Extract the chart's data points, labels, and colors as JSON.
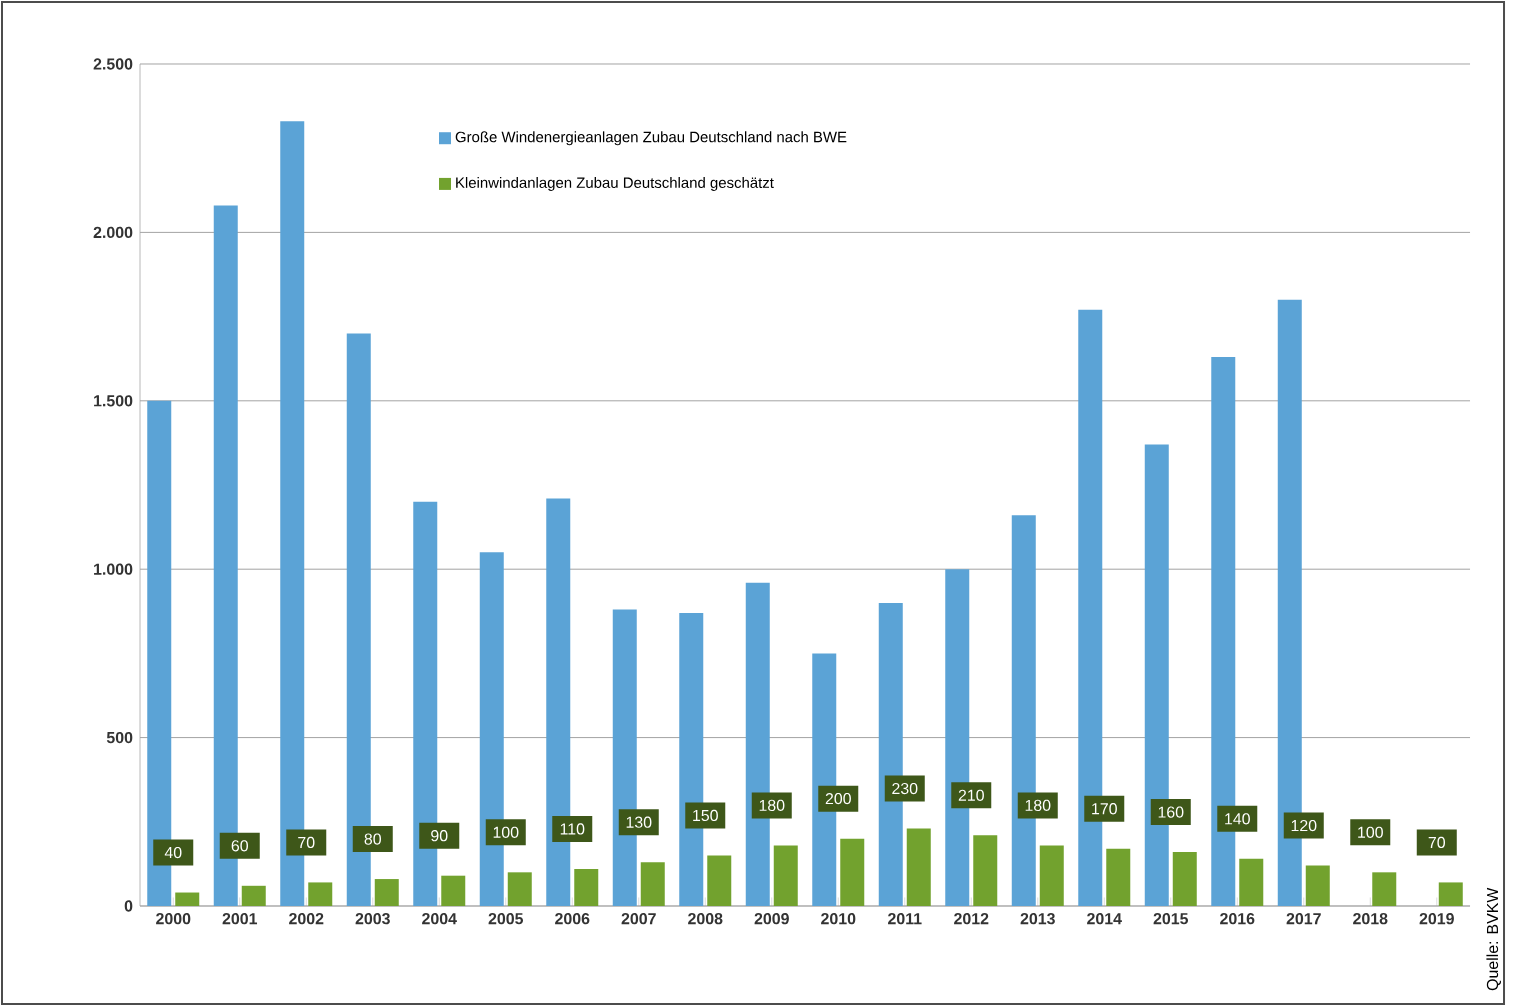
{
  "chart_data": {
    "type": "bar",
    "categories": [
      "2000",
      "2001",
      "2002",
      "2003",
      "2004",
      "2005",
      "2006",
      "2007",
      "2008",
      "2009",
      "2010",
      "2011",
      "2012",
      "2013",
      "2014",
      "2015",
      "2016",
      "2017",
      "2018",
      "2019"
    ],
    "series": [
      {
        "name": "Große Windenergieanlagen Zubau Deutschland nach BWE",
        "color": "#5ba3d6",
        "values": [
          1500,
          2080,
          2330,
          1700,
          1200,
          1050,
          1210,
          880,
          870,
          960,
          750,
          900,
          1000,
          1160,
          1770,
          1370,
          1630,
          1800,
          null,
          null
        ]
      },
      {
        "name": "Kleinwindanlagen Zubau Deutschland geschätzt",
        "color": "#72a22e",
        "values": [
          40,
          60,
          70,
          80,
          90,
          100,
          110,
          130,
          150,
          180,
          200,
          230,
          210,
          180,
          170,
          160,
          140,
          120,
          100,
          70
        ],
        "value_labels": [
          "40",
          "60",
          "70",
          "80",
          "90",
          "100",
          "110",
          "130",
          "150",
          "180",
          "200",
          "230",
          "210",
          "180",
          "170",
          "160",
          "140",
          "120",
          "100",
          "70"
        ]
      }
    ],
    "ylim": [
      0,
      2500
    ],
    "yticks": [
      0,
      500,
      {
        "value": 1000,
        "label": "1.000"
      },
      {
        "value": 1500,
        "label": "1.500"
      },
      {
        "value": 2000,
        "label": "2.000"
      },
      {
        "value": 2500,
        "label": "2.500"
      }
    ],
    "grid": "y",
    "legend": "top",
    "annotations": [
      "Quelle: BVKW"
    ]
  }
}
